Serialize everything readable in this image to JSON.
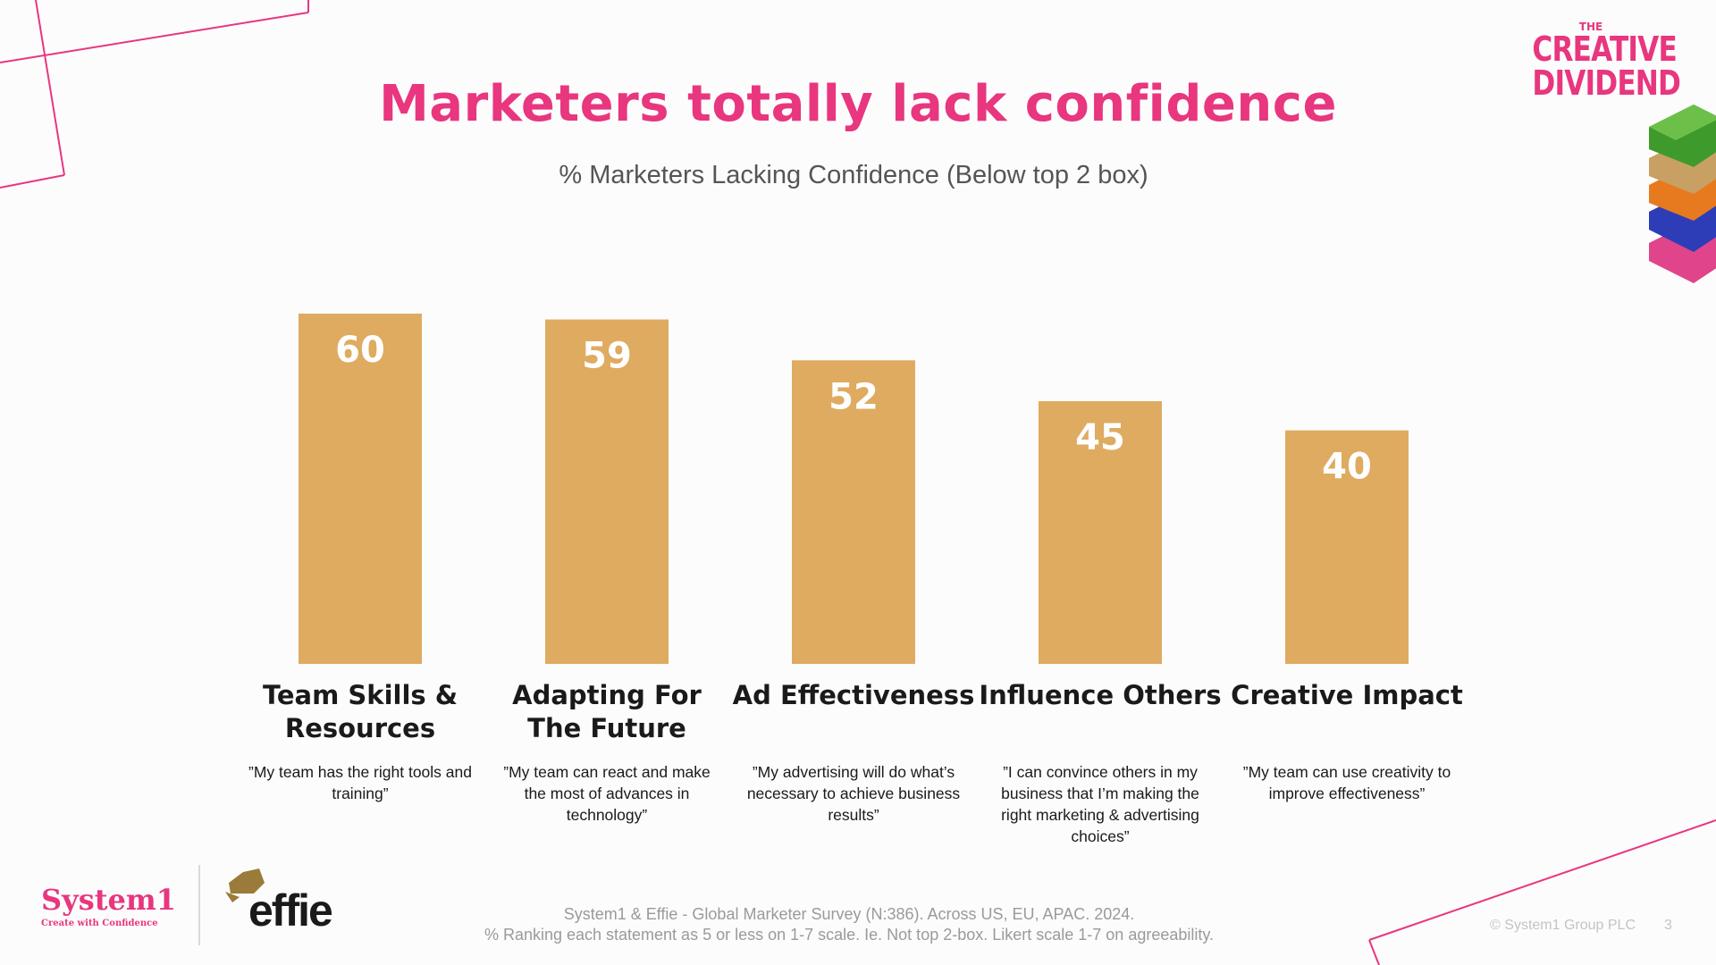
{
  "header": {
    "title": "Marketers totally lack confidence",
    "subtitle": "% Marketers Lacking Confidence (Below top 2 box)"
  },
  "brand": {
    "creative_dividend_the": "THE",
    "creative_dividend_line1": "CREATIVE",
    "creative_dividend_line2": "DIVIDEND",
    "system1_name": "System1",
    "system1_tagline": "Create with Confidence",
    "effie_name": "effie"
  },
  "colors": {
    "accent": "#e8367f",
    "bar": "#dfab61",
    "bar_value_text": "#ffffff"
  },
  "chart_data": {
    "type": "bar",
    "title": "% Marketers Lacking Confidence (Below top 2 box)",
    "xlabel": "",
    "ylabel": "",
    "ylim": [
      0,
      60
    ],
    "categories": [
      "Team Skills & Resources",
      "Adapting For The Future",
      "Ad Effectiveness",
      "Influence Others",
      "Creative Impact"
    ],
    "values": [
      60,
      59,
      52,
      45,
      40
    ],
    "category_lines": [
      [
        "Team Skills &",
        "Resources"
      ],
      [
        "Adapting For",
        "The Future"
      ],
      [
        "Ad Effectiveness"
      ],
      [
        "Influence Others"
      ],
      [
        "Creative Impact"
      ]
    ],
    "quotes": [
      "”My team has the right tools and training”",
      "”My team can react and make the most of advances in technology”",
      "”My advertising will do what’s necessary to achieve business results”",
      "”I can convince others in my business that I’m making the right marketing & advertising choices”",
      "”My team can use creativity to improve effectiveness”"
    ],
    "grid": false,
    "legend": "none"
  },
  "footer": {
    "source_line1": "System1 & Effie - Global Marketer Survey (N:386). Across US, EU, APAC. 2024.",
    "source_line2": "% Ranking each statement as 5 or less on 1-7 scale. Ie. Not top 2-box. Likert scale 1-7 on agreeability.",
    "copyright": "© System1 Group PLC",
    "page_number": "3"
  }
}
